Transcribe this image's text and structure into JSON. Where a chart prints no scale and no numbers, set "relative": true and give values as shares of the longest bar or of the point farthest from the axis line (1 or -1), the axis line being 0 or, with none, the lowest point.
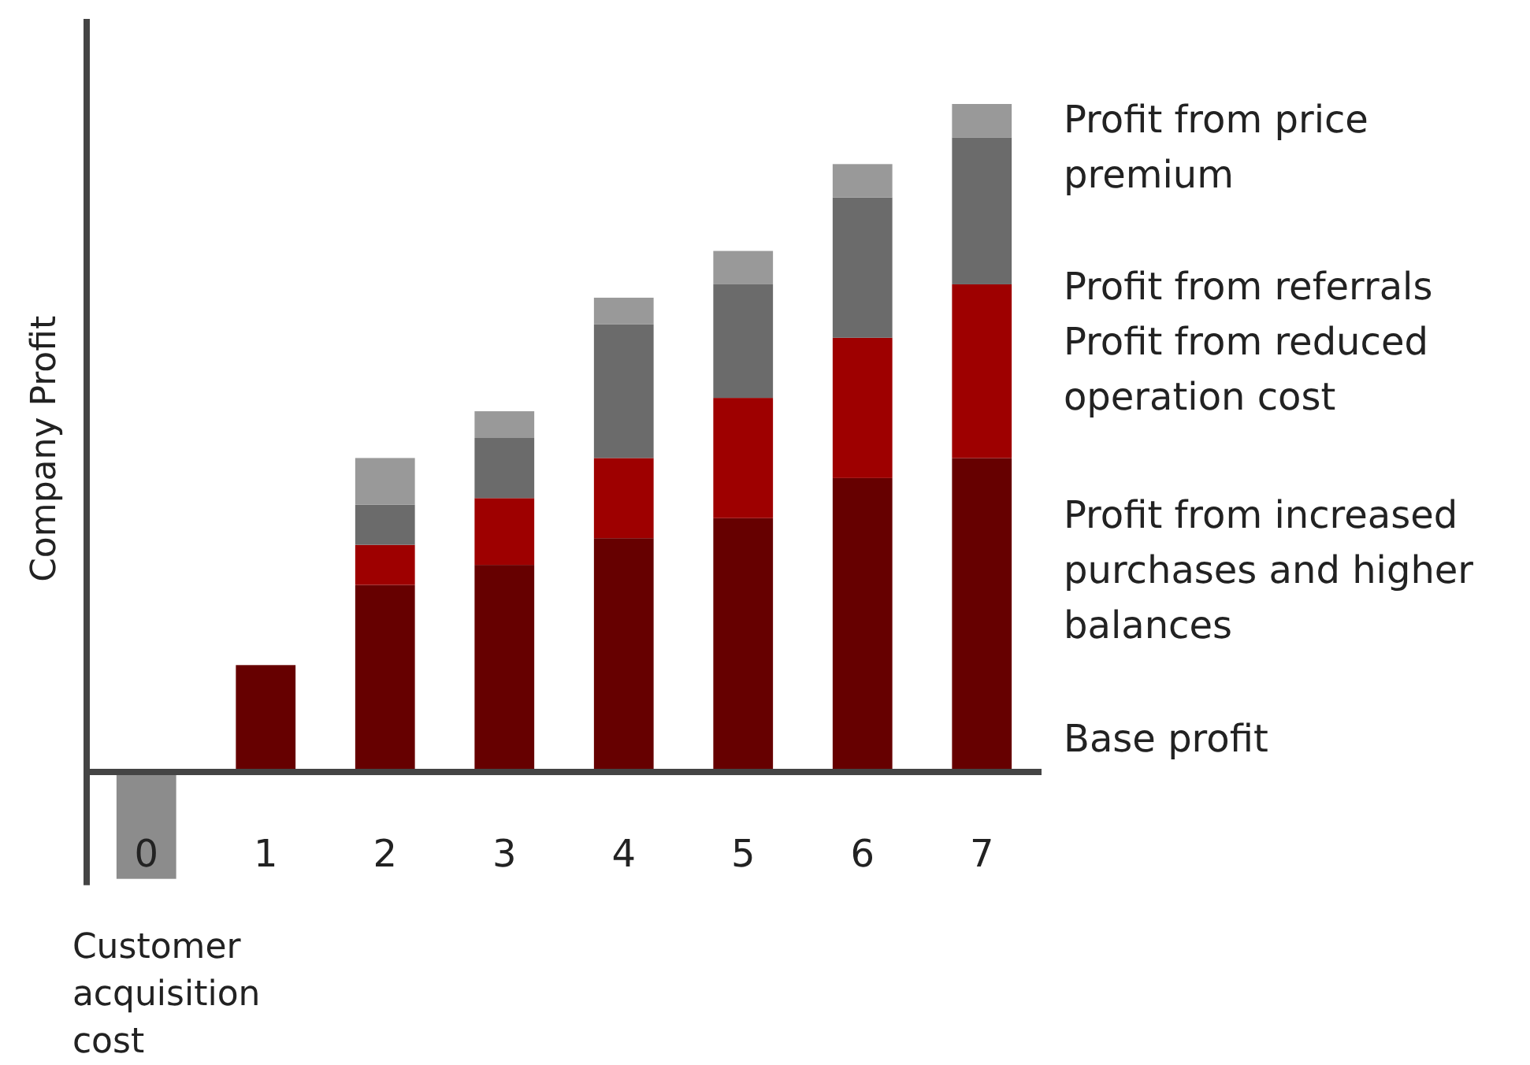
{
  "chart_data": {
    "type": "bar",
    "stacked": true,
    "relative": true,
    "ylabel": "Company Profit",
    "categories": [
      "0",
      "1",
      "2",
      "3",
      "4",
      "5",
      "6",
      "7"
    ],
    "series": [
      {
        "color": "#8c8c8c",
        "values": [
          -0.16,
          null,
          null,
          null,
          null,
          null,
          null,
          null
        ]
      },
      {
        "color": "#660000",
        "values": [
          null,
          0.16,
          0.28,
          0.31,
          0.35,
          0.38,
          0.44,
          0.47
        ]
      },
      {
        "color": "#9e0000",
        "values": [
          null,
          null,
          0.06,
          0.1,
          0.12,
          0.18,
          0.21,
          0.26
        ]
      },
      {
        "color": "#6b6b6b",
        "values": [
          null,
          null,
          0.06,
          0.09,
          0.2,
          0.17,
          0.21,
          0.22
        ]
      },
      {
        "color": "#999999",
        "values": [
          null,
          null,
          0.07,
          0.04,
          0.04,
          0.05,
          0.05,
          0.05
        ]
      }
    ],
    "annotations": [
      "Profit from price premium",
      "Profit from referrals",
      "Profit from reduced operation cost",
      "Profit from increased purchases and higher balances",
      "Base profit",
      {
        "text": "Customer acquisition cost",
        "x": "0",
        "y": -0.16
      }
    ]
  }
}
